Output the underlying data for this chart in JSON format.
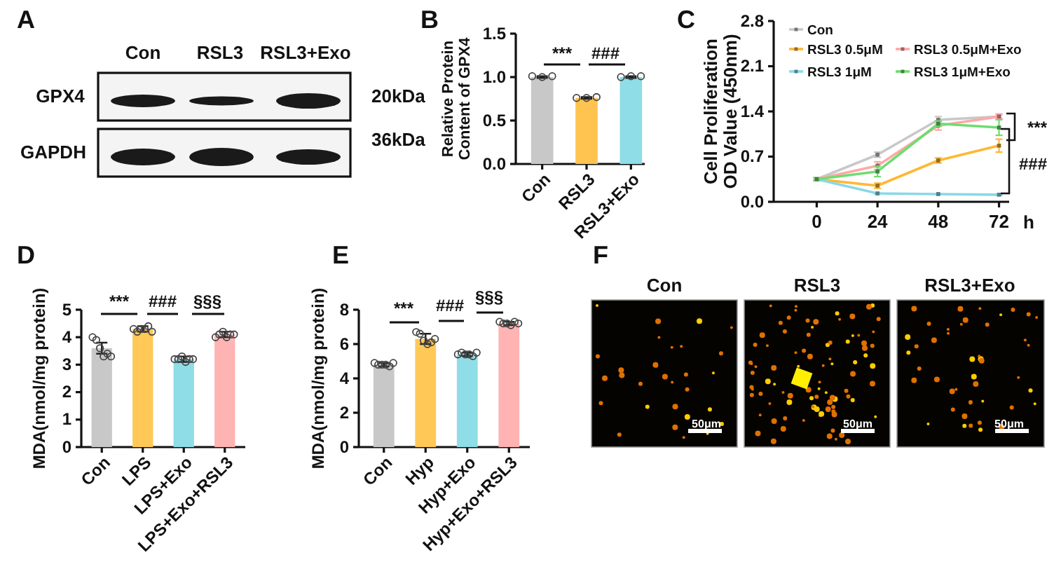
{
  "chart_data": [
    {
      "type": "other",
      "title": "A",
      "annotations": [
        "Con",
        "RSL3",
        "RSL3+Exo",
        "GPX4",
        "GAPDH",
        "20kDa",
        "36kDa"
      ]
    },
    {
      "type": "bar",
      "title": "B",
      "ylabel": "Relative Protein Content of GPX4",
      "categories": [
        "Con",
        "RSL3",
        "RSL3+Exo"
      ],
      "ylim": [
        0,
        1.5
      ],
      "yticks": [
        {
          "value": 0,
          "label": "0.0"
        },
        {
          "value": 0.5,
          "label": "0.5"
        },
        {
          "value": 1,
          "label": "1.0"
        },
        {
          "value": 1.5,
          "label": "1.5"
        }
      ],
      "marker": "circle",
      "annotations": [
        "***",
        "###"
      ],
      "series": [
        {
          "type": "bar",
          "colors": [
            "#c8c8c8",
            "#ffc34f",
            "#8fdde6"
          ],
          "values": [
            1.0,
            0.76,
            1.0
          ],
          "errors": [
            0.01,
            0.01,
            0.01
          ]
        },
        {
          "type": "scatter",
          "color": "#444444",
          "x": [
            "Con",
            "Con",
            "Con",
            "RSL3",
            "RSL3",
            "RSL3",
            "RSL3+Exo",
            "RSL3+Exo",
            "RSL3+Exo"
          ],
          "values": [
            1.01,
            1.0,
            1.01,
            0.76,
            0.76,
            0.77,
            1.0,
            1.01,
            1.01
          ]
        }
      ]
    },
    {
      "type": "line",
      "title": "C",
      "ylabel": "Cell Proliferation OD Value (450nm)",
      "xlabel": "h",
      "x": [
        0,
        24,
        48,
        72
      ],
      "xlim": [
        -17,
        76
      ],
      "xticks": [
        0,
        24,
        48,
        72
      ],
      "ylim": [
        0,
        2.8
      ],
      "yticks": [
        {
          "value": 0,
          "label": "0.0"
        },
        {
          "value": 0.7,
          "label": "0.7"
        },
        {
          "value": 1.4,
          "label": "1.4"
        },
        {
          "value": 2.1,
          "label": "2.1"
        },
        {
          "value": 2.8,
          "label": "2.8"
        }
      ],
      "legend": "top",
      "marker": "square",
      "annotations": [
        "***",
        "###"
      ],
      "series": [
        {
          "name": "Con",
          "color": "#c8c8c8",
          "values": [
            0.35,
            0.73,
            1.27,
            1.32
          ],
          "errors": [
            0.02,
            0.04,
            0.05,
            0.03
          ]
        },
        {
          "name": "RSL3 0.5μM",
          "color": "#ffb733",
          "values": [
            0.35,
            0.25,
            0.64,
            0.87
          ],
          "errors": [
            0.02,
            0.04,
            0.04,
            0.1
          ]
        },
        {
          "name": "RSL3 1μM",
          "color": "#8ad8e8",
          "values": [
            0.35,
            0.13,
            0.12,
            0.11
          ],
          "errors": [
            0.02,
            0.01,
            0.01,
            0.01
          ]
        },
        {
          "name": "RSL3 0.5μM+Exo",
          "color": "#ffa8a8",
          "values": [
            0.35,
            0.56,
            1.18,
            1.32
          ],
          "errors": [
            0.02,
            0.06,
            0.07,
            0.04
          ]
        },
        {
          "name": "RSL3 1μM+Exo",
          "color": "#70dc70",
          "values": [
            0.35,
            0.47,
            1.21,
            1.15
          ],
          "errors": [
            0.02,
            0.08,
            0.04,
            0.12
          ]
        }
      ]
    },
    {
      "type": "bar",
      "title": "D",
      "ylabel": "MDA(nmol/mg protein)",
      "categories": [
        "Con",
        "LPS",
        "LPS+Exo",
        "LPS+Exo+RSL3"
      ],
      "ylim": [
        0,
        5
      ],
      "yticks": [
        0,
        1,
        2,
        3,
        4,
        5
      ],
      "marker": "circle",
      "annotations": [
        "***",
        "###",
        "§§§"
      ],
      "series": [
        {
          "type": "bar",
          "colors": [
            "#c8c8c8",
            "#ffc857",
            "#8fdde6",
            "#ffb3b3"
          ],
          "values": [
            3.6,
            4.3,
            3.2,
            4.1
          ],
          "errors": [
            0.2,
            0.1,
            0.1,
            0.1
          ]
        },
        {
          "type": "scatter",
          "color": "#444444",
          "x": [
            "Con",
            "Con",
            "Con",
            "Con",
            "Con",
            "Con",
            "LPS",
            "LPS",
            "LPS",
            "LPS",
            "LPS",
            "LPS",
            "LPS+Exo",
            "LPS+Exo",
            "LPS+Exo",
            "LPS+Exo",
            "LPS+Exo",
            "LPS+Exo",
            "LPS+Exo+RSL3",
            "LPS+Exo+RSL3",
            "LPS+Exo+RSL3",
            "LPS+Exo+RSL3",
            "LPS+Exo+RSL3",
            "LPS+Exo+RSL3"
          ],
          "values": [
            4.0,
            3.9,
            3.6,
            3.3,
            3.4,
            3.3,
            4.3,
            4.2,
            4.3,
            4.3,
            4.4,
            4.2,
            3.2,
            3.2,
            3.3,
            3.1,
            3.2,
            3.2,
            4.0,
            4.1,
            4.2,
            4.0,
            4.1,
            4.1
          ]
        }
      ]
    },
    {
      "type": "bar",
      "title": "E",
      "ylabel": "MDA(nmol/mg protein)",
      "categories": [
        "Con",
        "Hyp",
        "Hyp+Exo",
        "Hyp+Exo+RSL3"
      ],
      "ylim": [
        0,
        8
      ],
      "yticks": [
        0,
        2,
        4,
        6,
        8
      ],
      "marker": "circle",
      "annotations": [
        "***",
        "###",
        "§§§"
      ],
      "series": [
        {
          "type": "bar",
          "colors": [
            "#c8c8c8",
            "#ffc857",
            "#8fdde6",
            "#ffb3b3"
          ],
          "values": [
            4.8,
            6.3,
            5.4,
            7.2
          ],
          "errors": [
            0.1,
            0.3,
            0.1,
            0.1
          ]
        },
        {
          "type": "scatter",
          "color": "#444444",
          "x": [
            "Con",
            "Con",
            "Con",
            "Con",
            "Con",
            "Con",
            "Hyp",
            "Hyp",
            "Hyp",
            "Hyp",
            "Hyp",
            "Hyp",
            "Hyp+Exo",
            "Hyp+Exo",
            "Hyp+Exo",
            "Hyp+Exo",
            "Hyp+Exo",
            "Hyp+Exo",
            "Hyp+Exo+RSL3",
            "Hyp+Exo+RSL3",
            "Hyp+Exo+RSL3",
            "Hyp+Exo+RSL3",
            "Hyp+Exo+RSL3",
            "Hyp+Exo+RSL3"
          ],
          "values": [
            4.9,
            4.8,
            4.8,
            4.8,
            4.7,
            4.9,
            6.7,
            6.6,
            6.2,
            6.0,
            6.1,
            6.3,
            5.4,
            5.5,
            5.4,
            5.4,
            5.3,
            5.5,
            7.3,
            7.2,
            7.2,
            7.1,
            7.3,
            7.2
          ]
        }
      ]
    },
    {
      "type": "other",
      "title": "F",
      "annotations": [
        "Con",
        "RSL3",
        "RSL3+Exo",
        "50μm",
        "50μm",
        "50μm"
      ]
    }
  ]
}
